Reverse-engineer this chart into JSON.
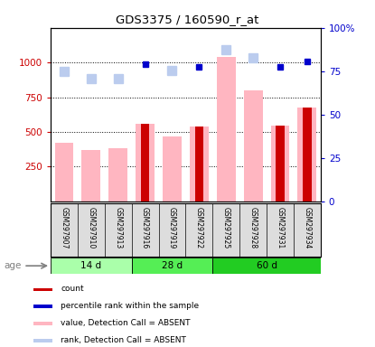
{
  "title": "GDS3375 / 160590_r_at",
  "samples": [
    "GSM297907",
    "GSM297910",
    "GSM297913",
    "GSM297916",
    "GSM297919",
    "GSM297922",
    "GSM297925",
    "GSM297928",
    "GSM297931",
    "GSM297934"
  ],
  "count_values": [
    null,
    null,
    null,
    560,
    null,
    540,
    null,
    null,
    545,
    675
  ],
  "percentile_values": [
    null,
    null,
    null,
    985,
    null,
    970,
    null,
    null,
    970,
    1005
  ],
  "absent_value_bars": [
    420,
    370,
    380,
    560,
    470,
    540,
    1040,
    800,
    545,
    675
  ],
  "absent_rank_dots": [
    935,
    885,
    882,
    null,
    945,
    null,
    1095,
    1035,
    null,
    null
  ],
  "groups": [
    {
      "label": "14 d",
      "color": "#AAFFAA",
      "start": 0,
      "end": 2
    },
    {
      "label": "28 d",
      "color": "#44EE44",
      "start": 3,
      "end": 5
    },
    {
      "label": "60 d",
      "color": "#22DD22",
      "start": 6,
      "end": 9
    }
  ],
  "left_ylim": [
    0,
    1250
  ],
  "left_yticks": [
    250,
    500,
    750,
    1000
  ],
  "right_ytick_labels": [
    "0",
    "25",
    "50",
    "75",
    "100%"
  ],
  "right_ytick_values": [
    0,
    312.5,
    625,
    937.5,
    1250
  ],
  "left_tick_color": "#CC0000",
  "right_tick_color": "#0000CC",
  "count_color": "#CC0000",
  "percentile_color": "#0000CC",
  "absent_value_color": "#FFB6C1",
  "absent_rank_color": "#BBCCEE",
  "legend_items": [
    {
      "color": "#CC0000",
      "label": "count"
    },
    {
      "color": "#0000CC",
      "label": "percentile rank within the sample"
    },
    {
      "color": "#FFB6C1",
      "label": "value, Detection Call = ABSENT"
    },
    {
      "color": "#BBCCEE",
      "label": "rank, Detection Call = ABSENT"
    }
  ]
}
